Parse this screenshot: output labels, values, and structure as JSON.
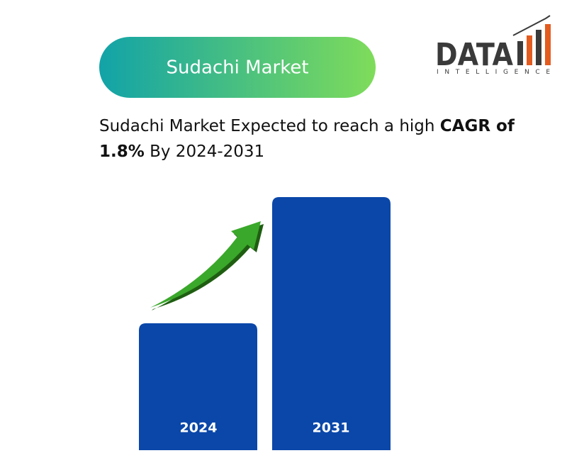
{
  "header": {
    "title": "Sudachi Market"
  },
  "logo": {
    "word": "DATA",
    "tagline": "INTELLIGENCE"
  },
  "headline": {
    "lead": "Sudachi Market Expected to reach a high ",
    "highlight": "CAGR of 1.8%",
    "tail": " By 2024-2031"
  },
  "bars": [
    {
      "label": "2024"
    },
    {
      "label": "2031"
    }
  ]
}
